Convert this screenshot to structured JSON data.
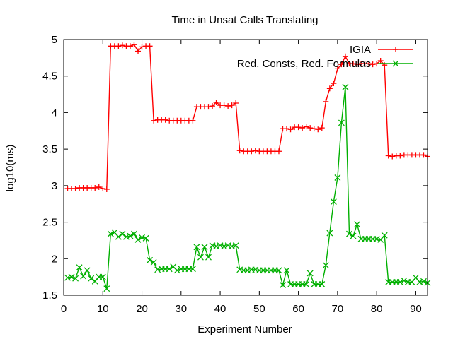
{
  "chart_data": {
    "type": "line",
    "title": "Time in Unsat Calls Translating",
    "xlabel": "Experiment Number",
    "ylabel": "log10(ms)",
    "xlim": [
      0,
      93
    ],
    "ylim": [
      1.5,
      5
    ],
    "xticks": [
      "0",
      "10",
      "20",
      "30",
      "40",
      "50",
      "60",
      "70",
      "80",
      "90"
    ],
    "yticks": [
      "1.5",
      "2",
      "2.5",
      "3",
      "3.5",
      "4",
      "4.5",
      "5"
    ],
    "grid": false,
    "legend_position": "top-right",
    "series": [
      {
        "name": "IGIA",
        "color": "#ff0000",
        "marker": "plus",
        "x": [
          1,
          2,
          3,
          4,
          5,
          6,
          7,
          8,
          9,
          10,
          11,
          12,
          13,
          14,
          15,
          16,
          17,
          18,
          19,
          20,
          21,
          22,
          23,
          24,
          25,
          26,
          27,
          28,
          29,
          30,
          31,
          32,
          33,
          34,
          35,
          36,
          37,
          38,
          39,
          40,
          41,
          42,
          43,
          44,
          45,
          46,
          47,
          48,
          49,
          50,
          51,
          52,
          53,
          54,
          55,
          56,
          57,
          58,
          59,
          60,
          61,
          62,
          63,
          64,
          65,
          66,
          67,
          68,
          69,
          70,
          71,
          72,
          73,
          74,
          75,
          76,
          77,
          78,
          79,
          80,
          81,
          82,
          83,
          84,
          85,
          86,
          87,
          88,
          89,
          90,
          91,
          92,
          93
        ],
        "y": [
          2.96,
          2.96,
          2.96,
          2.97,
          2.97,
          2.97,
          2.97,
          2.97,
          2.98,
          2.96,
          2.95,
          4.91,
          4.91,
          4.91,
          4.92,
          4.91,
          4.91,
          4.93,
          4.84,
          4.9,
          4.91,
          4.91,
          3.89,
          3.9,
          3.9,
          3.9,
          3.89,
          3.89,
          3.89,
          3.89,
          3.89,
          3.89,
          3.89,
          4.08,
          4.08,
          4.08,
          4.08,
          4.09,
          4.14,
          4.1,
          4.1,
          4.09,
          4.1,
          4.13,
          3.48,
          3.47,
          3.47,
          3.47,
          3.48,
          3.47,
          3.47,
          3.47,
          3.47,
          3.47,
          3.47,
          3.78,
          3.78,
          3.77,
          3.8,
          3.8,
          3.79,
          3.81,
          3.79,
          3.78,
          3.77,
          3.79,
          4.15,
          4.33,
          4.4,
          4.6,
          4.66,
          4.77,
          4.67,
          4.67,
          4.66,
          4.67,
          4.67,
          4.67,
          4.66,
          4.67,
          4.71,
          4.65,
          3.41,
          3.4,
          3.41,
          3.41,
          3.42,
          3.42,
          3.42,
          3.42,
          3.42,
          3.42,
          3.4
        ]
      },
      {
        "name": "Red. Consts, Red. Formulas",
        "color": "#00b000",
        "marker": "cross",
        "x": [
          1,
          2,
          3,
          4,
          5,
          6,
          7,
          8,
          9,
          10,
          11,
          12,
          13,
          14,
          15,
          16,
          17,
          18,
          19,
          20,
          21,
          22,
          23,
          24,
          25,
          26,
          27,
          28,
          29,
          30,
          31,
          32,
          33,
          34,
          35,
          36,
          37,
          38,
          39,
          40,
          41,
          42,
          43,
          44,
          45,
          46,
          47,
          48,
          49,
          50,
          51,
          52,
          53,
          54,
          55,
          56,
          57,
          58,
          59,
          60,
          61,
          62,
          63,
          64,
          65,
          66,
          67,
          68,
          69,
          70,
          71,
          72,
          73,
          74,
          75,
          76,
          77,
          78,
          79,
          80,
          81,
          82,
          83,
          84,
          85,
          86,
          87,
          88,
          89,
          90,
          91,
          92,
          93
        ],
        "y": [
          1.74,
          1.75,
          1.73,
          1.88,
          1.76,
          1.84,
          1.73,
          1.69,
          1.75,
          1.75,
          1.59,
          2.34,
          2.36,
          2.3,
          2.34,
          2.3,
          2.31,
          2.34,
          2.26,
          2.29,
          2.28,
          1.98,
          1.95,
          1.85,
          1.86,
          1.86,
          1.86,
          1.89,
          1.84,
          1.86,
          1.86,
          1.86,
          1.86,
          2.16,
          2.02,
          2.16,
          2.02,
          2.18,
          2.17,
          2.18,
          2.17,
          2.18,
          2.17,
          2.18,
          1.85,
          1.84,
          1.84,
          1.85,
          1.85,
          1.84,
          1.84,
          1.84,
          1.84,
          1.84,
          1.84,
          1.64,
          1.84,
          1.65,
          1.65,
          1.65,
          1.65,
          1.65,
          1.8,
          1.65,
          1.65,
          1.65,
          1.91,
          2.35,
          2.78,
          3.11,
          3.86,
          4.35,
          2.34,
          2.31,
          2.47,
          2.27,
          2.27,
          2.27,
          2.27,
          2.27,
          2.26,
          2.32,
          1.68,
          1.68,
          1.68,
          1.68,
          1.7,
          1.68,
          1.68,
          1.74,
          1.68,
          1.69,
          1.67
        ]
      }
    ]
  }
}
